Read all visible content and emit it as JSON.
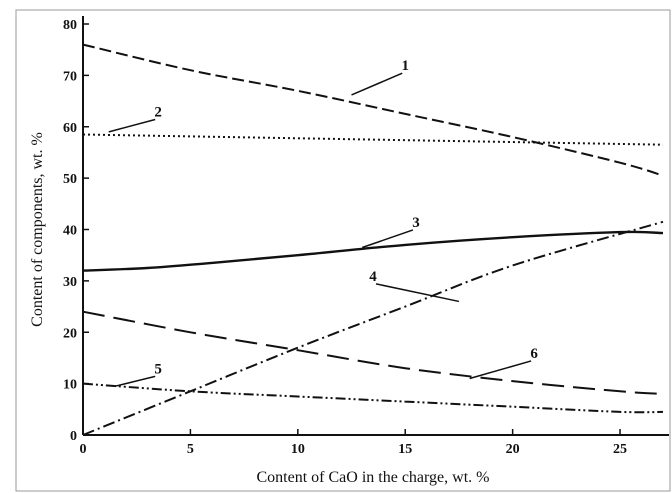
{
  "chart_data": {
    "type": "line",
    "title": "",
    "xlabel": "Content of CaO in the charge, wt. %",
    "ylabel": "Content of components, wt. %",
    "xlim": [
      0,
      27
    ],
    "ylim": [
      0,
      80
    ],
    "xticks": [
      0,
      5,
      10,
      15,
      20,
      25
    ],
    "yticks": [
      0,
      10,
      20,
      30,
      40,
      50,
      60,
      70,
      80
    ],
    "grid": false,
    "legend": "none",
    "series": [
      {
        "name": "1",
        "style": "dash-long",
        "x": [
          0,
          5,
          10,
          15,
          20,
          25,
          27
        ],
        "y": [
          76,
          71,
          67,
          62.5,
          58,
          53,
          50.5
        ]
      },
      {
        "name": "2",
        "style": "dotted",
        "x": [
          0,
          27
        ],
        "y": [
          58.5,
          56.5
        ]
      },
      {
        "name": "3",
        "style": "solid",
        "x": [
          0,
          3,
          6,
          10,
          15,
          20,
          25,
          27
        ],
        "y": [
          32,
          32.5,
          33.5,
          35,
          37,
          38.5,
          39.5,
          39.3
        ]
      },
      {
        "name": "4",
        "style": "dash-dot",
        "x": [
          0,
          5,
          10,
          15,
          20,
          27
        ],
        "y": [
          0,
          8.5,
          17,
          25,
          33,
          41.5
        ]
      },
      {
        "name": "5",
        "style": "dash-dot-dot",
        "x": [
          0,
          5,
          10,
          15,
          20,
          25,
          27
        ],
        "y": [
          10,
          8.5,
          7.5,
          6.5,
          5.5,
          4.5,
          4.5
        ]
      },
      {
        "name": "6",
        "style": "dash-extra-long",
        "x": [
          0,
          5,
          10,
          15,
          20,
          25,
          27
        ],
        "y": [
          24,
          20,
          16.5,
          13,
          10.5,
          8.5,
          8
        ]
      }
    ],
    "curve_labels": [
      {
        "text": "1",
        "x": 15,
        "y": 71,
        "line_to": [
          12.5,
          66.2
        ]
      },
      {
        "text": "2",
        "x": 3.5,
        "y": 62,
        "line_to": [
          1.2,
          59
        ]
      },
      {
        "text": "3",
        "x": 15.5,
        "y": 40.5,
        "line_to": [
          13,
          36.5
        ]
      },
      {
        "text": "4",
        "x": 13.5,
        "y": 30,
        "line_to": [
          17.5,
          26
        ]
      },
      {
        "text": "5",
        "x": 3.5,
        "y": 12,
        "line_to": [
          1.5,
          9.5
        ]
      },
      {
        "text": "6",
        "x": 21,
        "y": 15,
        "line_to": [
          18,
          11
        ]
      }
    ]
  }
}
